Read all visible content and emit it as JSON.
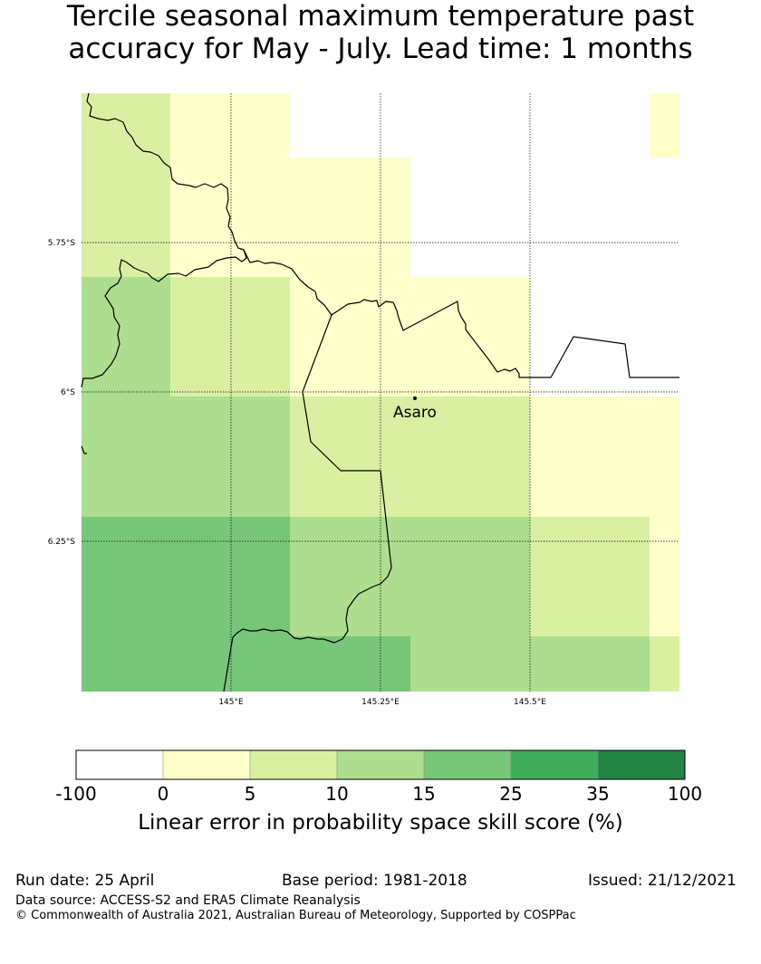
{
  "title": {
    "line1": "Tercile seasonal maximum temperature past",
    "line2": "accuracy for May - July. Lead time: 1 months"
  },
  "map": {
    "lat_labels": [
      "5.75°S",
      "6°S",
      "6.25°S"
    ],
    "lon_labels": [
      "145°E",
      "145.25°E",
      "145.5°E"
    ],
    "place": "Asaro",
    "colors": [
      "#ffffff",
      "#ffffcc",
      "#d9f0a3",
      "#addd8e",
      "#78c679",
      "#41ab5d",
      "#238443"
    ]
  },
  "colorbar": {
    "ticks": [
      "-100",
      "0",
      "5",
      "10",
      "15",
      "25",
      "35",
      "100"
    ],
    "label": "Linear error in probability space skill score (%)"
  },
  "footer": {
    "run_date": "Run date: 25 April",
    "base_period": "Base period: 1981-2018",
    "issued": "Issued: 21/12/2021",
    "data_source": "Data source: ACCESS-S2 and ERA5 Climate Reanalysis",
    "copyright": "© Commonwealth of Australia 2021, Australian Bureau of Meteorology, Supported by COSPPac"
  }
}
